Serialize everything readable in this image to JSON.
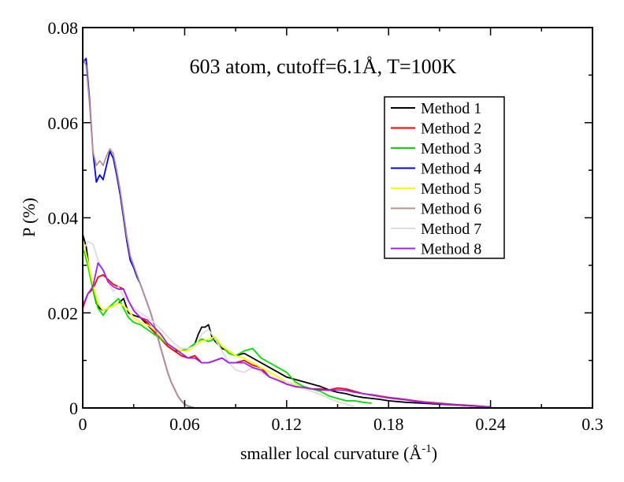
{
  "chart_data": {
    "type": "line",
    "title": "603 atom, cutoff=6.1Å, T=100K",
    "xlabel": "smaller local curvature (Å",
    "xlabel_sup": "-1",
    "xlabel_close": ")",
    "ylabel": "P (%)",
    "xlim": [
      0,
      0.3
    ],
    "ylim": [
      0,
      0.08
    ],
    "xticks": [
      "0",
      "0.06",
      "0.12",
      "0.18",
      "0.24",
      "0.3"
    ],
    "xtick_values": [
      0,
      0.06,
      0.12,
      0.18,
      0.24,
      0.3
    ],
    "yticks": [
      "0",
      "0.02",
      "0.04",
      "0.06",
      "0.08"
    ],
    "ytick_values": [
      0,
      0.02,
      0.04,
      0.06,
      0.08
    ],
    "grid": false,
    "legend_position": "top-right",
    "series": [
      {
        "name": "Method 1",
        "color": "#000000",
        "x": [
          0,
          0.002,
          0.004,
          0.006,
          0.008,
          0.01,
          0.012,
          0.015,
          0.018,
          0.021,
          0.024,
          0.027,
          0.03,
          0.034,
          0.038,
          0.042,
          0.046,
          0.05,
          0.054,
          0.058,
          0.062,
          0.066,
          0.068,
          0.07,
          0.072,
          0.074,
          0.076,
          0.078,
          0.082,
          0.086,
          0.09,
          0.095,
          0.1,
          0.105,
          0.11,
          0.115,
          0.12,
          0.125,
          0.13,
          0.135,
          0.14,
          0.145,
          0.15,
          0.155,
          0.16,
          0.165,
          0.17,
          0.175,
          0.18,
          0.19,
          0.2,
          0.21,
          0.22,
          0.23,
          0.24
        ],
        "y": [
          0.0365,
          0.034,
          0.029,
          0.025,
          0.022,
          0.021,
          0.0205,
          0.021,
          0.0215,
          0.022,
          0.023,
          0.02,
          0.0195,
          0.019,
          0.0175,
          0.016,
          0.0145,
          0.013,
          0.012,
          0.012,
          0.0125,
          0.0135,
          0.0155,
          0.017,
          0.017,
          0.0175,
          0.015,
          0.014,
          0.0125,
          0.012,
          0.011,
          0.0115,
          0.0105,
          0.0095,
          0.0085,
          0.0075,
          0.0065,
          0.006,
          0.0055,
          0.005,
          0.0045,
          0.0038,
          0.0033,
          0.003,
          0.0025,
          0.0022,
          0.002,
          0.0018,
          0.0015,
          0.0012,
          0.001,
          0.0008,
          0.0006,
          0.0004,
          0.0002
        ]
      },
      {
        "name": "Method 2",
        "color": "#ff0000",
        "x": [
          0,
          0.003,
          0.006,
          0.009,
          0.012,
          0.015,
          0.018,
          0.021,
          0.024,
          0.027,
          0.03,
          0.034,
          0.038,
          0.042,
          0.046,
          0.05,
          0.054,
          0.058,
          0.062,
          0.066,
          0.07,
          0.074,
          0.078,
          0.082,
          0.086,
          0.09,
          0.095,
          0.1,
          0.105,
          0.11,
          0.115,
          0.12,
          0.125,
          0.13,
          0.135,
          0.14,
          0.145,
          0.15,
          0.155,
          0.16,
          0.165,
          0.17,
          0.175,
          0.18,
          0.19,
          0.2,
          0.21,
          0.22,
          0.23,
          0.24
        ],
        "y": [
          0.021,
          0.024,
          0.025,
          0.0275,
          0.028,
          0.027,
          0.026,
          0.0255,
          0.025,
          0.0225,
          0.0205,
          0.019,
          0.018,
          0.016,
          0.0145,
          0.013,
          0.012,
          0.011,
          0.0105,
          0.011,
          0.0095,
          0.0095,
          0.01,
          0.0105,
          0.0095,
          0.0095,
          0.01,
          0.009,
          0.0085,
          0.0065,
          0.006,
          0.005,
          0.0045,
          0.0042,
          0.004,
          0.004,
          0.0038,
          0.0042,
          0.004,
          0.0035,
          0.003,
          0.0028,
          0.0025,
          0.0022,
          0.0018,
          0.0013,
          0.001,
          0.0007,
          0.0005,
          0.0002
        ]
      },
      {
        "name": "Method 3",
        "color": "#00dd00",
        "x": [
          0,
          0.003,
          0.006,
          0.009,
          0.012,
          0.015,
          0.018,
          0.021,
          0.024,
          0.027,
          0.03,
          0.034,
          0.038,
          0.042,
          0.046,
          0.05,
          0.054,
          0.058,
          0.062,
          0.066,
          0.07,
          0.074,
          0.078,
          0.082,
          0.086,
          0.09,
          0.095,
          0.1,
          0.105,
          0.11,
          0.115,
          0.12,
          0.125,
          0.13,
          0.135,
          0.14,
          0.145,
          0.15,
          0.155,
          0.16,
          0.165,
          0.17
        ],
        "y": [
          0.034,
          0.03,
          0.025,
          0.021,
          0.0195,
          0.021,
          0.022,
          0.023,
          0.021,
          0.019,
          0.018,
          0.0175,
          0.0165,
          0.0155,
          0.0145,
          0.0135,
          0.0125,
          0.012,
          0.0125,
          0.0135,
          0.0145,
          0.014,
          0.0145,
          0.013,
          0.0115,
          0.011,
          0.012,
          0.0125,
          0.0105,
          0.0095,
          0.0085,
          0.0075,
          0.0055,
          0.0045,
          0.004,
          0.0035,
          0.0025,
          0.002,
          0.0015,
          0.0015,
          0.0012,
          0.001
        ]
      },
      {
        "name": "Method 4",
        "color": "#0000ff",
        "x": [
          0,
          0.002,
          0.004,
          0.006,
          0.008,
          0.01,
          0.012,
          0.014,
          0.016,
          0.018,
          0.02,
          0.022,
          0.024,
          0.026,
          0.028,
          0.03,
          0.032,
          0.034,
          0.036,
          0.038,
          0.04,
          0.042,
          0.044,
          0.046,
          0.048,
          0.05,
          0.052,
          0.054,
          0.056,
          0.058,
          0.06,
          0.062,
          0.064,
          0.066
        ],
        "y": [
          0.0725,
          0.0735,
          0.065,
          0.054,
          0.0475,
          0.049,
          0.048,
          0.051,
          0.054,
          0.0525,
          0.049,
          0.045,
          0.04,
          0.035,
          0.031,
          0.0295,
          0.0275,
          0.026,
          0.024,
          0.022,
          0.02,
          0.0175,
          0.015,
          0.0125,
          0.01,
          0.0075,
          0.0055,
          0.004,
          0.0025,
          0.0015,
          0.0008,
          0.0004,
          0.0002,
          0
        ]
      },
      {
        "name": "Method 5",
        "color": "#ffff00",
        "x": [
          0,
          0.003,
          0.006,
          0.009,
          0.012,
          0.015,
          0.018,
          0.021,
          0.024,
          0.027,
          0.03,
          0.034,
          0.038,
          0.042,
          0.046,
          0.05,
          0.054,
          0.058,
          0.062,
          0.066,
          0.07,
          0.074,
          0.078,
          0.082,
          0.086,
          0.09,
          0.095,
          0.1,
          0.105,
          0.11,
          0.115,
          0.12,
          0.125,
          0.13,
          0.135,
          0.14,
          0.145,
          0.15,
          0.155,
          0.16
        ],
        "y": [
          0.035,
          0.031,
          0.026,
          0.022,
          0.0205,
          0.021,
          0.0215,
          0.022,
          0.0215,
          0.0205,
          0.019,
          0.018,
          0.0175,
          0.0165,
          0.015,
          0.0135,
          0.0125,
          0.012,
          0.012,
          0.013,
          0.014,
          0.0145,
          0.015,
          0.013,
          0.012,
          0.011,
          0.0105,
          0.0095,
          0.0085,
          0.0075,
          0.0065,
          0.0055,
          0.005,
          0.0042,
          0.0035,
          0.0028,
          0.002,
          0.0013,
          0.0008,
          0.0003
        ]
      },
      {
        "name": "Method 6",
        "color": "#bc8f8f",
        "x": [
          0,
          0.002,
          0.004,
          0.006,
          0.008,
          0.01,
          0.012,
          0.014,
          0.016,
          0.018,
          0.02,
          0.022,
          0.024,
          0.026,
          0.028,
          0.03,
          0.032,
          0.034,
          0.036,
          0.038,
          0.04,
          0.042,
          0.044,
          0.046,
          0.048,
          0.05,
          0.052,
          0.054,
          0.056,
          0.058,
          0.06,
          0.062,
          0.064,
          0.066
        ],
        "y": [
          0.0735,
          0.072,
          0.064,
          0.054,
          0.051,
          0.052,
          0.051,
          0.053,
          0.0545,
          0.0535,
          0.05,
          0.046,
          0.041,
          0.036,
          0.032,
          0.03,
          0.028,
          0.026,
          0.024,
          0.022,
          0.02,
          0.0175,
          0.015,
          0.0125,
          0.01,
          0.0075,
          0.0055,
          0.004,
          0.0025,
          0.0015,
          0.0008,
          0.0004,
          0.0002,
          0
        ]
      },
      {
        "name": "Method 7",
        "color": "#dcdcdc",
        "x": [
          0,
          0.003,
          0.006,
          0.009,
          0.012,
          0.015,
          0.018,
          0.021,
          0.024,
          0.027,
          0.03,
          0.034,
          0.038,
          0.042,
          0.046,
          0.05,
          0.054,
          0.058,
          0.062,
          0.066,
          0.07,
          0.074,
          0.078,
          0.082,
          0.086,
          0.09,
          0.095,
          0.1,
          0.105,
          0.11,
          0.115,
          0.12,
          0.125,
          0.13,
          0.135,
          0.14,
          0.145,
          0.15,
          0.155,
          0.16
        ],
        "y": [
          0.033,
          0.035,
          0.0345,
          0.031,
          0.029,
          0.0265,
          0.0245,
          0.0255,
          0.0235,
          0.0225,
          0.021,
          0.02,
          0.019,
          0.018,
          0.0165,
          0.015,
          0.0135,
          0.0125,
          0.0125,
          0.013,
          0.0155,
          0.0165,
          0.0145,
          0.012,
          0.0095,
          0.008,
          0.0075,
          0.0085,
          0.0075,
          0.0065,
          0.006,
          0.0055,
          0.0048,
          0.004,
          0.0035,
          0.0028,
          0.002,
          0.0013,
          0.0008,
          0.0003
        ]
      },
      {
        "name": "Method 8",
        "color": "#a020f0",
        "x": [
          0,
          0.003,
          0.006,
          0.009,
          0.012,
          0.015,
          0.018,
          0.021,
          0.024,
          0.027,
          0.03,
          0.034,
          0.038,
          0.042,
          0.046,
          0.05,
          0.054,
          0.058,
          0.062,
          0.066,
          0.07,
          0.074,
          0.078,
          0.082,
          0.086,
          0.09,
          0.095,
          0.1,
          0.105,
          0.11,
          0.115,
          0.12,
          0.125,
          0.13,
          0.135,
          0.14,
          0.145,
          0.15,
          0.155,
          0.16,
          0.165,
          0.17,
          0.175,
          0.18,
          0.19,
          0.2,
          0.21,
          0.22,
          0.23,
          0.24
        ],
        "y": [
          0.0215,
          0.024,
          0.0255,
          0.0305,
          0.029,
          0.0265,
          0.0255,
          0.025,
          0.025,
          0.0225,
          0.0205,
          0.019,
          0.0185,
          0.017,
          0.0155,
          0.0135,
          0.0125,
          0.0115,
          0.0105,
          0.0105,
          0.0095,
          0.0095,
          0.01,
          0.0105,
          0.0095,
          0.0095,
          0.0095,
          0.0085,
          0.008,
          0.0065,
          0.0058,
          0.005,
          0.0045,
          0.0043,
          0.004,
          0.0038,
          0.0037,
          0.0038,
          0.0037,
          0.0033,
          0.003,
          0.0027,
          0.0024,
          0.0021,
          0.0017,
          0.0012,
          0.0009,
          0.0006,
          0.0004,
          0.0002
        ]
      }
    ]
  }
}
